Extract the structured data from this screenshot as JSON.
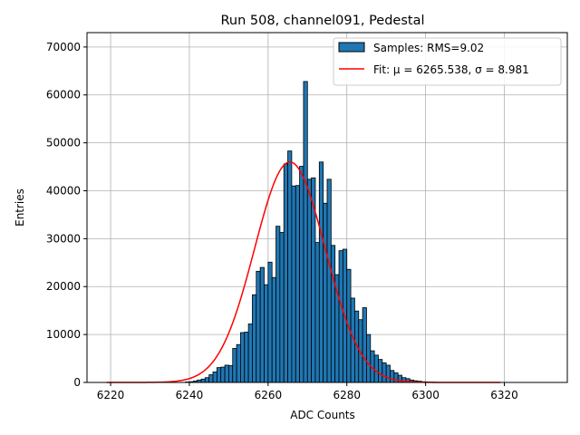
{
  "chart_data": {
    "type": "histogram",
    "title": "Run 508, channel091, Pedestal",
    "xlabel": "ADC Counts",
    "ylabel": "Entries",
    "xlim": [
      6214,
      6336
    ],
    "ylim": [
      0,
      73000
    ],
    "xticks": [
      6220,
      6240,
      6260,
      6280,
      6300,
      6320
    ],
    "yticks": [
      0,
      10000,
      20000,
      30000,
      40000,
      50000,
      60000,
      70000
    ],
    "grid": true,
    "legend_position": "top-right",
    "bin_start": 6219,
    "bin_width": 1,
    "values": [
      0,
      0,
      0,
      0,
      0,
      0,
      0,
      0,
      0,
      0,
      0,
      0,
      0,
      0,
      0,
      0,
      0,
      0,
      0,
      0,
      100,
      150,
      300,
      500,
      700,
      1000,
      1600,
      2200,
      3100,
      3200,
      3600,
      3500,
      7100,
      7900,
      10400,
      10500,
      12200,
      18300,
      23200,
      24000,
      20400,
      25100,
      21900,
      32600,
      31300,
      45600,
      48300,
      41000,
      41100,
      45100,
      62800,
      42400,
      42700,
      29200,
      46000,
      37400,
      42400,
      28600,
      22500,
      27500,
      27800,
      23600,
      17600,
      14900,
      13100,
      15600,
      10000,
      6600,
      5700,
      4800,
      4100,
      3600,
      2500,
      2000,
      1500,
      1000,
      800,
      500,
      350,
      250,
      150,
      100,
      60,
      40,
      20,
      10,
      5,
      0,
      0,
      0,
      0,
      0,
      0,
      0,
      0,
      0,
      0,
      0,
      0,
      0,
      0,
      0,
      0,
      0,
      0,
      0,
      0,
      0,
      0,
      0,
      0,
      0
    ],
    "bar_color": "#1f77b4",
    "bar_edge_color": "#000000",
    "fit": {
      "mu": 6265.538,
      "sigma": 8.981,
      "amplitude": 46000,
      "x_range": [
        6219,
        6319
      ],
      "color": "#ff0000"
    },
    "legend": [
      {
        "label": "Samples: RMS=9.02",
        "kind": "patch",
        "color": "#1f77b4"
      },
      {
        "label": "Fit: μ = 6265.538, σ = 8.981",
        "kind": "line",
        "color": "#ff0000"
      }
    ]
  }
}
